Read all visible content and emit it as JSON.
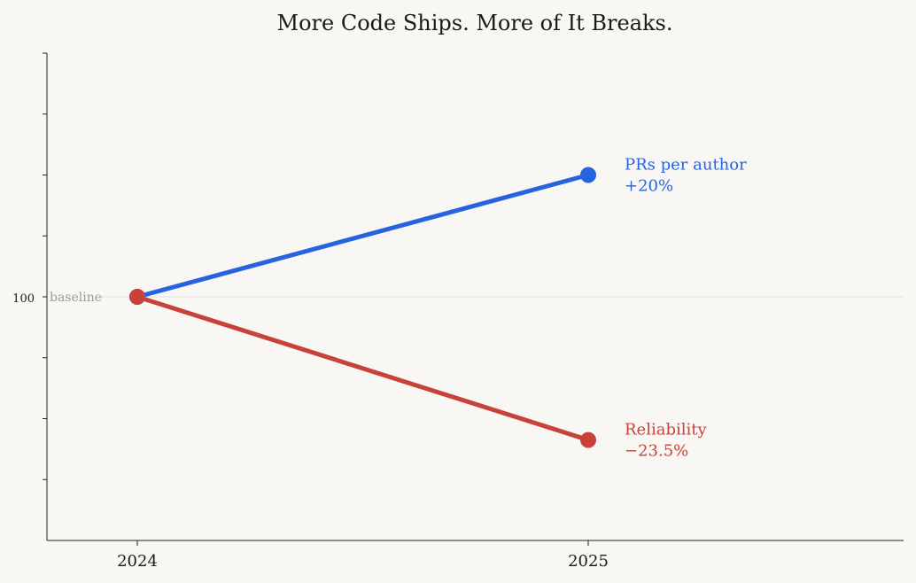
{
  "chart_data": {
    "type": "line",
    "title": "More Code Ships. More of It Breaks.",
    "x": [
      "2024",
      "2025"
    ],
    "y_tick_labels": [
      "100"
    ],
    "baseline": {
      "value": 100,
      "label": "baseline"
    },
    "ylim": [
      60,
      140
    ],
    "grid": false,
    "series": [
      {
        "name": "PRs per author",
        "change": "+20%",
        "values": [
          100,
          120
        ],
        "color": "#2563e0"
      },
      {
        "name": "Reliability",
        "change": "−23.5%",
        "values": [
          100,
          76.5
        ],
        "color": "#c8413a"
      }
    ]
  }
}
